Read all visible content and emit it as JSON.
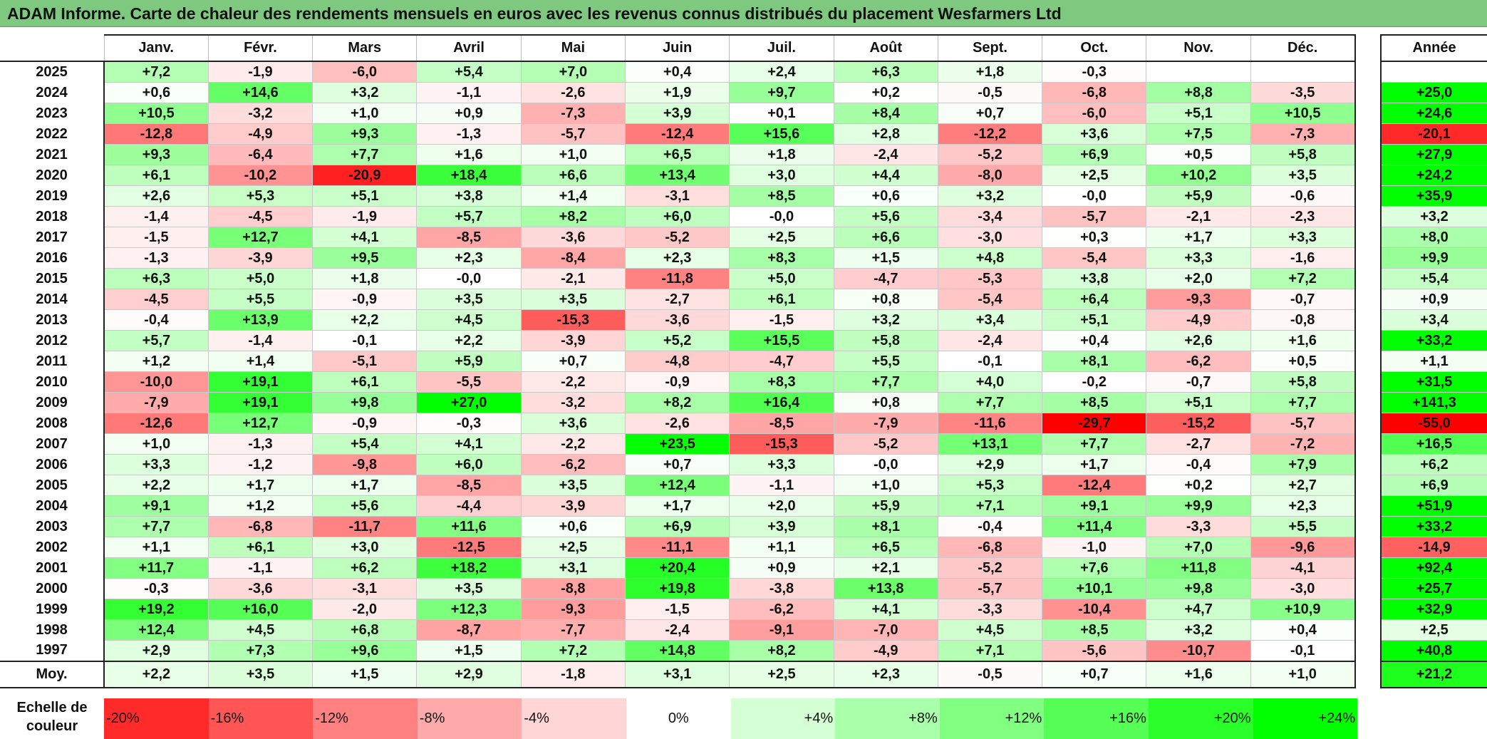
{
  "title": "ADAM Informe. Carte de chaleur des rendements mensuels en euros avec les revenus connus distribués du placement Wesfarmers Ltd",
  "chart_data": {
    "type": "heatmap",
    "title": "ADAM Informe. Carte de chaleur des rendements mensuels en euros avec les revenus connus distribués du placement Wesfarmers Ltd",
    "months": [
      "Janv.",
      "Févr.",
      "Mars",
      "Avril",
      "Mai",
      "Juin",
      "Juil.",
      "Août",
      "Sept.",
      "Oct.",
      "Nov.",
      "Déc."
    ],
    "annual_header": "Année",
    "rows": [
      {
        "year": "2025",
        "values": [
          "+7,2",
          "-1,9",
          "-6,0",
          "+5,4",
          "+7,0",
          "+0,4",
          "+2,4",
          "+6,3",
          "+1,8",
          "-0,3",
          "",
          ""
        ],
        "annual": ""
      },
      {
        "year": "2024",
        "values": [
          "+0,6",
          "+14,6",
          "+3,2",
          "-1,1",
          "-2,6",
          "+1,9",
          "+9,7",
          "+0,2",
          "-0,5",
          "-6,8",
          "+8,8",
          "-3,5"
        ],
        "annual": "+25,0"
      },
      {
        "year": "2023",
        "values": [
          "+10,5",
          "-3,2",
          "+1,0",
          "+0,9",
          "-7,3",
          "+3,9",
          "+0,1",
          "+8,4",
          "+0,7",
          "-6,0",
          "+5,1",
          "+10,5"
        ],
        "annual": "+24,6"
      },
      {
        "year": "2022",
        "values": [
          "-12,8",
          "-4,9",
          "+9,3",
          "-1,3",
          "-5,7",
          "-12,4",
          "+15,6",
          "+2,8",
          "-12,2",
          "+3,6",
          "+7,5",
          "-7,3"
        ],
        "annual": "-20,1"
      },
      {
        "year": "2021",
        "values": [
          "+9,3",
          "-6,4",
          "+7,7",
          "+1,6",
          "+1,0",
          "+6,5",
          "+1,8",
          "-2,4",
          "-5,2",
          "+6,9",
          "+0,5",
          "+5,8"
        ],
        "annual": "+27,9"
      },
      {
        "year": "2020",
        "values": [
          "+6,1",
          "-10,2",
          "-20,9",
          "+18,4",
          "+6,6",
          "+13,4",
          "+3,0",
          "+4,4",
          "-8,0",
          "+2,5",
          "+10,2",
          "+3,5"
        ],
        "annual": "+24,2"
      },
      {
        "year": "2019",
        "values": [
          "+2,6",
          "+5,3",
          "+5,1",
          "+3,8",
          "+1,4",
          "-3,1",
          "+8,5",
          "+0,6",
          "+3,2",
          "-0,0",
          "+5,9",
          "-0,6"
        ],
        "annual": "+35,9"
      },
      {
        "year": "2018",
        "values": [
          "-1,4",
          "-4,5",
          "-1,9",
          "+5,7",
          "+8,2",
          "+6,0",
          "-0,0",
          "+5,6",
          "-3,4",
          "-5,7",
          "-2,1",
          "-2,3"
        ],
        "annual": "+3,2"
      },
      {
        "year": "2017",
        "values": [
          "-1,5",
          "+12,7",
          "+4,1",
          "-8,5",
          "-3,6",
          "-5,2",
          "+2,5",
          "+6,6",
          "-3,0",
          "+0,3",
          "+1,7",
          "+3,3"
        ],
        "annual": "+8,0"
      },
      {
        "year": "2016",
        "values": [
          "-1,3",
          "-3,9",
          "+9,5",
          "+2,3",
          "-8,4",
          "+2,3",
          "+8,3",
          "+1,5",
          "+4,8",
          "-5,4",
          "+3,3",
          "-1,6"
        ],
        "annual": "+9,9"
      },
      {
        "year": "2015",
        "values": [
          "+6,3",
          "+5,0",
          "+1,8",
          "-0,0",
          "-2,1",
          "-11,8",
          "+5,0",
          "-4,7",
          "-5,3",
          "+3,8",
          "+2,0",
          "+7,2"
        ],
        "annual": "+5,4"
      },
      {
        "year": "2014",
        "values": [
          "-4,5",
          "+5,5",
          "-0,9",
          "+3,5",
          "+3,5",
          "-2,7",
          "+6,1",
          "+0,8",
          "-5,4",
          "+6,4",
          "-9,3",
          "-0,7"
        ],
        "annual": "+0,9"
      },
      {
        "year": "2013",
        "values": [
          "-0,4",
          "+13,9",
          "+2,2",
          "+4,5",
          "-15,3",
          "-3,6",
          "-1,5",
          "+3,2",
          "+3,4",
          "+5,1",
          "-4,9",
          "-0,8"
        ],
        "annual": "+3,4"
      },
      {
        "year": "2012",
        "values": [
          "+5,7",
          "-1,4",
          "-0,1",
          "+2,2",
          "-3,9",
          "+5,2",
          "+15,5",
          "+5,8",
          "-2,4",
          "+0,4",
          "+2,6",
          "+1,6"
        ],
        "annual": "+33,2"
      },
      {
        "year": "2011",
        "values": [
          "+1,2",
          "+1,4",
          "-5,1",
          "+5,9",
          "+0,7",
          "-4,8",
          "-4,7",
          "+5,5",
          "-0,1",
          "+8,1",
          "-6,2",
          "+0,5"
        ],
        "annual": "+1,1"
      },
      {
        "year": "2010",
        "values": [
          "-10,0",
          "+19,1",
          "+6,1",
          "-5,5",
          "-2,2",
          "-0,9",
          "+8,3",
          "+7,7",
          "+4,0",
          "-0,2",
          "-0,7",
          "+5,8"
        ],
        "annual": "+31,5"
      },
      {
        "year": "2009",
        "values": [
          "-7,9",
          "+19,1",
          "+9,8",
          "+27,0",
          "-3,2",
          "+8,2",
          "+16,4",
          "+0,8",
          "+7,7",
          "+8,5",
          "+5,1",
          "+7,7"
        ],
        "annual": "+141,3"
      },
      {
        "year": "2008",
        "values": [
          "-12,6",
          "+12,7",
          "-0,9",
          "-0,3",
          "+3,6",
          "-2,6",
          "-8,5",
          "-7,9",
          "-11,6",
          "-29,7",
          "-15,2",
          "-5,7"
        ],
        "annual": "-55,0"
      },
      {
        "year": "2007",
        "values": [
          "+1,0",
          "-1,3",
          "+5,4",
          "+4,1",
          "-2,2",
          "+23,5",
          "-15,3",
          "-5,2",
          "+13,1",
          "+7,7",
          "-2,7",
          "-7,2"
        ],
        "annual": "+16,5"
      },
      {
        "year": "2006",
        "values": [
          "+3,3",
          "-1,2",
          "-9,8",
          "+6,0",
          "-6,2",
          "+0,7",
          "+3,3",
          "-0,0",
          "+2,9",
          "+1,7",
          "-0,4",
          "+7,9"
        ],
        "annual": "+6,2"
      },
      {
        "year": "2005",
        "values": [
          "+2,2",
          "+1,7",
          "+1,7",
          "-8,5",
          "+3,5",
          "+12,4",
          "-1,1",
          "+1,0",
          "+5,3",
          "-12,4",
          "+0,2",
          "+2,7"
        ],
        "annual": "+6,9"
      },
      {
        "year": "2004",
        "values": [
          "+9,1",
          "+1,2",
          "+5,6",
          "-4,4",
          "-3,9",
          "+1,7",
          "+2,0",
          "+5,9",
          "+7,1",
          "+9,1",
          "+9,9",
          "+2,3"
        ],
        "annual": "+51,9"
      },
      {
        "year": "2003",
        "values": [
          "+7,7",
          "-6,8",
          "-11,7",
          "+11,6",
          "+0,6",
          "+6,9",
          "+3,9",
          "+8,1",
          "-0,4",
          "+11,4",
          "-3,3",
          "+5,5"
        ],
        "annual": "+33,2"
      },
      {
        "year": "2002",
        "values": [
          "+1,1",
          "+6,1",
          "+3,0",
          "-12,5",
          "+2,5",
          "-11,1",
          "+1,1",
          "+6,5",
          "-6,8",
          "-1,0",
          "+7,0",
          "-9,6"
        ],
        "annual": "-14,9"
      },
      {
        "year": "2001",
        "values": [
          "+11,7",
          "-1,1",
          "+6,2",
          "+18,2",
          "+3,1",
          "+20,4",
          "+0,9",
          "+2,1",
          "-5,2",
          "+7,6",
          "+11,8",
          "-4,1"
        ],
        "annual": "+92,4"
      },
      {
        "year": "2000",
        "values": [
          "-0,3",
          "-3,6",
          "-3,1",
          "+3,5",
          "-8,8",
          "+19,8",
          "-3,8",
          "+13,8",
          "-5,7",
          "+10,1",
          "+9,8",
          "-3,0"
        ],
        "annual": "+25,7"
      },
      {
        "year": "1999",
        "values": [
          "+19,2",
          "+16,0",
          "-2,0",
          "+12,3",
          "-9,3",
          "-1,5",
          "-6,2",
          "+4,1",
          "-3,3",
          "-10,4",
          "+4,7",
          "+10,9"
        ],
        "annual": "+32,9"
      },
      {
        "year": "1998",
        "values": [
          "+12,4",
          "+4,5",
          "+6,8",
          "-8,7",
          "-7,7",
          "-2,4",
          "-9,1",
          "-7,0",
          "+4,5",
          "+8,5",
          "+3,2",
          "+0,4"
        ],
        "annual": "+2,5"
      },
      {
        "year": "1997",
        "values": [
          "+2,9",
          "+7,3",
          "+9,6",
          "+1,5",
          "+7,2",
          "+14,8",
          "+8,2",
          "-4,9",
          "+7,1",
          "-5,6",
          "-10,7",
          "-0,1"
        ],
        "annual": "+40,8"
      }
    ],
    "average": {
      "label": "Moy.",
      "values": [
        "+2,2",
        "+3,5",
        "+1,5",
        "+2,9",
        "-1,8",
        "+3,1",
        "+2,5",
        "+2,3",
        "-0,5",
        "+0,7",
        "+1,6",
        "+1,0"
      ],
      "annual": "+21,2"
    },
    "scale": {
      "label": "Echelle de couleur",
      "steps": [
        "-20%",
        "-16%",
        "-12%",
        "-8%",
        "-4%",
        "0%",
        "+4%",
        "+8%",
        "+12%",
        "+16%",
        "+20%",
        "+24%"
      ]
    },
    "colors": {
      "positive_max": "#00ff00",
      "negative_max": "#ff0000",
      "neutral": "#ffffff",
      "title_bg": "#7fc87f"
    }
  }
}
